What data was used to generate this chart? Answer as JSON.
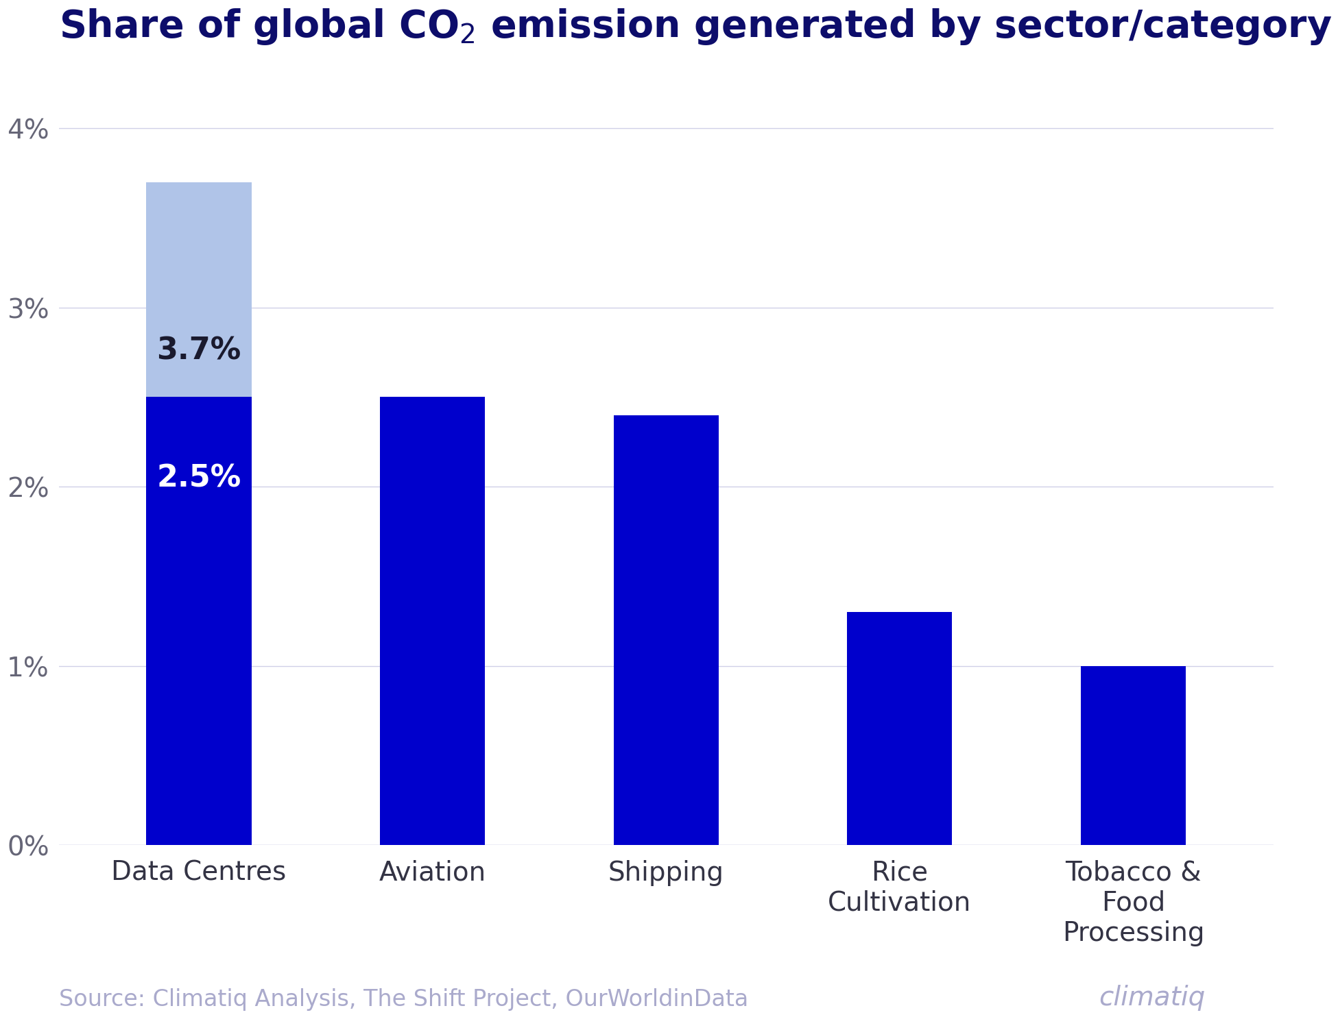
{
  "categories": [
    "Data Centres",
    "Aviation",
    "Shipping",
    "Rice\nCultivation",
    "Tobacco &\nFood\nProcessing"
  ],
  "values": [
    2.5,
    2.5,
    2.4,
    1.3,
    1.0
  ],
  "dc_total": 3.7,
  "dc_base": 2.5,
  "bar_color": "#0000CC",
  "dc_top_color": "#b0c4e8",
  "title": "Share of global CO$_2$ emission generated by sector/category",
  "title_color": "#0d0d6b",
  "ylim": [
    0,
    4.3
  ],
  "yticks": [
    0,
    1,
    2,
    3,
    4
  ],
  "label_25": "2.5%",
  "label_37": "3.7%",
  "label_25_color": "#ffffff",
  "label_37_color": "#1a1a2e",
  "source_text": "Source: Climatiq Analysis, The Shift Project, OurWorldinData",
  "source_color": "#aaaacc",
  "grid_color": "#d0d0e8",
  "background_color": "#ffffff",
  "title_fontsize": 40,
  "tick_fontsize": 28,
  "xlabel_fontsize": 28,
  "annotation_fontsize": 32,
  "source_fontsize": 24,
  "bar_width": 0.45
}
